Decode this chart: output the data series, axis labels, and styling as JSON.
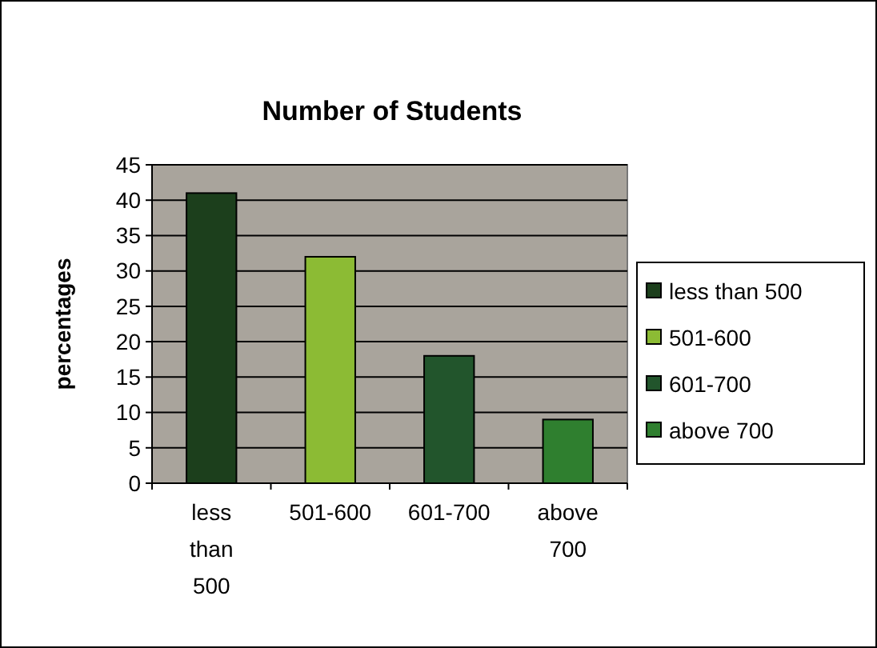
{
  "chart_data": {
    "type": "bar",
    "title": "Number of Students",
    "ylabel": "percentages",
    "categories": [
      "less than 500",
      "501-600",
      "601-700",
      "above 700"
    ],
    "series": [
      {
        "name": "less than 500",
        "color": "#1c3f1c",
        "values": [
          41,
          null,
          null,
          null
        ]
      },
      {
        "name": "501-600",
        "color": "#8cbb34",
        "values": [
          null,
          32,
          null,
          null
        ]
      },
      {
        "name": "601-700",
        "color": "#22552c",
        "values": [
          null,
          null,
          18,
          null
        ]
      },
      {
        "name": "above 700",
        "color": "#2f7f2f",
        "values": [
          null,
          null,
          null,
          9
        ]
      }
    ],
    "ylim": [
      0,
      45
    ],
    "yticks": [
      0,
      5,
      10,
      15,
      20,
      25,
      30,
      35,
      40,
      45
    ],
    "grid": "y",
    "legend": "right"
  }
}
